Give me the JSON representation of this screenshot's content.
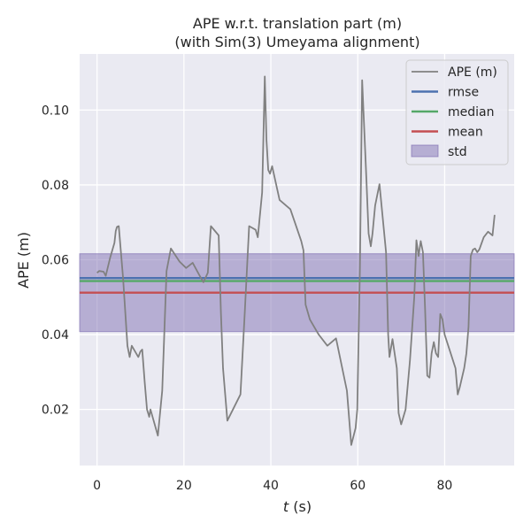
{
  "chart_data": {
    "type": "line",
    "title": "APE w.r.t. translation part (m)",
    "subtitle": "(with Sim(3) Umeyama alignment)",
    "xlabel_var": "t",
    "xlabel_unit": " (s)",
    "ylabel": "APE (m)",
    "xlim": [
      -4,
      96
    ],
    "ylim": [
      0.005,
      0.115
    ],
    "xticks": [
      0,
      20,
      40,
      60,
      80
    ],
    "xtick_labels": [
      "0",
      "20",
      "40",
      "60",
      "80"
    ],
    "yticks": [
      0.02,
      0.04,
      0.06,
      0.08,
      0.1
    ],
    "ytick_labels": [
      "0.02",
      "0.04",
      "0.06",
      "0.08",
      "0.10"
    ],
    "grid": true,
    "legend_position": "top-right",
    "series": [
      {
        "name": "APE (m)",
        "kind": "line",
        "color": "#808080",
        "x": [
          0.0,
          0.5,
          1.5,
          2.0,
          3.0,
          4.0,
          4.3,
          4.6,
          5.0,
          6.0,
          7.0,
          7.5,
          8.0,
          9.0,
          9.5,
          10.0,
          10.4,
          11.0,
          11.5,
          12.0,
          12.3,
          14.0,
          15.0,
          16.0,
          17.0,
          19.0,
          20.5,
          22.0,
          23.5,
          24.5,
          25.5,
          26.2,
          28.0,
          28.5,
          29.0,
          30.0,
          33.0,
          34.0,
          35.0,
          36.5,
          37.0,
          38.0,
          38.6,
          39.0,
          39.4,
          39.8,
          40.3,
          42.0,
          44.5,
          47.0,
          47.5,
          48.0,
          49.0,
          50.5,
          51.0,
          53.0,
          55.0,
          57.5,
          58.5,
          59.5,
          59.9,
          60.5,
          61.0,
          62.0,
          62.5,
          63.0,
          63.4,
          64.0,
          65.0,
          66.5,
          67.0,
          67.3,
          68.0,
          69.0,
          69.4,
          70.0,
          71.0,
          72.0,
          73.0,
          73.5,
          74.0,
          74.5,
          75.0,
          75.5,
          76.0,
          76.5,
          77.0,
          77.5,
          78.0,
          78.5,
          79.0,
          79.5,
          80.0,
          82.5,
          83.0,
          83.5,
          84.5,
          85.0,
          85.5,
          86.0,
          86.5,
          87.0,
          87.5,
          88.0,
          89.0,
          90.0,
          90.5,
          91.0,
          91.5
        ],
        "y": [
          0.0565,
          0.057,
          0.0568,
          0.0557,
          0.0605,
          0.0645,
          0.0677,
          0.0688,
          0.069,
          0.055,
          0.037,
          0.034,
          0.037,
          0.035,
          0.034,
          0.0355,
          0.036,
          0.027,
          0.02,
          0.018,
          0.02,
          0.013,
          0.025,
          0.057,
          0.063,
          0.0595,
          0.0578,
          0.0592,
          0.056,
          0.054,
          0.0565,
          0.069,
          0.0665,
          0.046,
          0.031,
          0.017,
          0.024,
          0.046,
          0.069,
          0.068,
          0.066,
          0.078,
          0.109,
          0.092,
          0.084,
          0.083,
          0.085,
          0.076,
          0.0735,
          0.065,
          0.0625,
          0.048,
          0.044,
          0.041,
          0.04,
          0.037,
          0.039,
          0.025,
          0.0105,
          0.015,
          0.02,
          0.058,
          0.108,
          0.081,
          0.067,
          0.0636,
          0.067,
          0.0745,
          0.0802,
          0.062,
          0.04,
          0.034,
          0.0388,
          0.031,
          0.019,
          0.016,
          0.02,
          0.033,
          0.05,
          0.0652,
          0.061,
          0.065,
          0.062,
          0.047,
          0.029,
          0.0285,
          0.035,
          0.038,
          0.035,
          0.034,
          0.0455,
          0.044,
          0.04,
          0.031,
          0.024,
          0.026,
          0.031,
          0.035,
          0.042,
          0.061,
          0.0627,
          0.063,
          0.062,
          0.0628,
          0.066,
          0.0675,
          0.067,
          0.0665,
          0.072
        ]
      },
      {
        "name": "rmse",
        "kind": "hline",
        "color": "#4c72b0",
        "value": 0.0551
      },
      {
        "name": "median",
        "kind": "hline",
        "color": "#55a868",
        "value": 0.0543
      },
      {
        "name": "mean",
        "kind": "hline",
        "color": "#c44e52",
        "value": 0.0512
      },
      {
        "name": "std",
        "kind": "band",
        "color": "#8172b3",
        "from": 0.0408,
        "to": 0.0616
      }
    ]
  }
}
